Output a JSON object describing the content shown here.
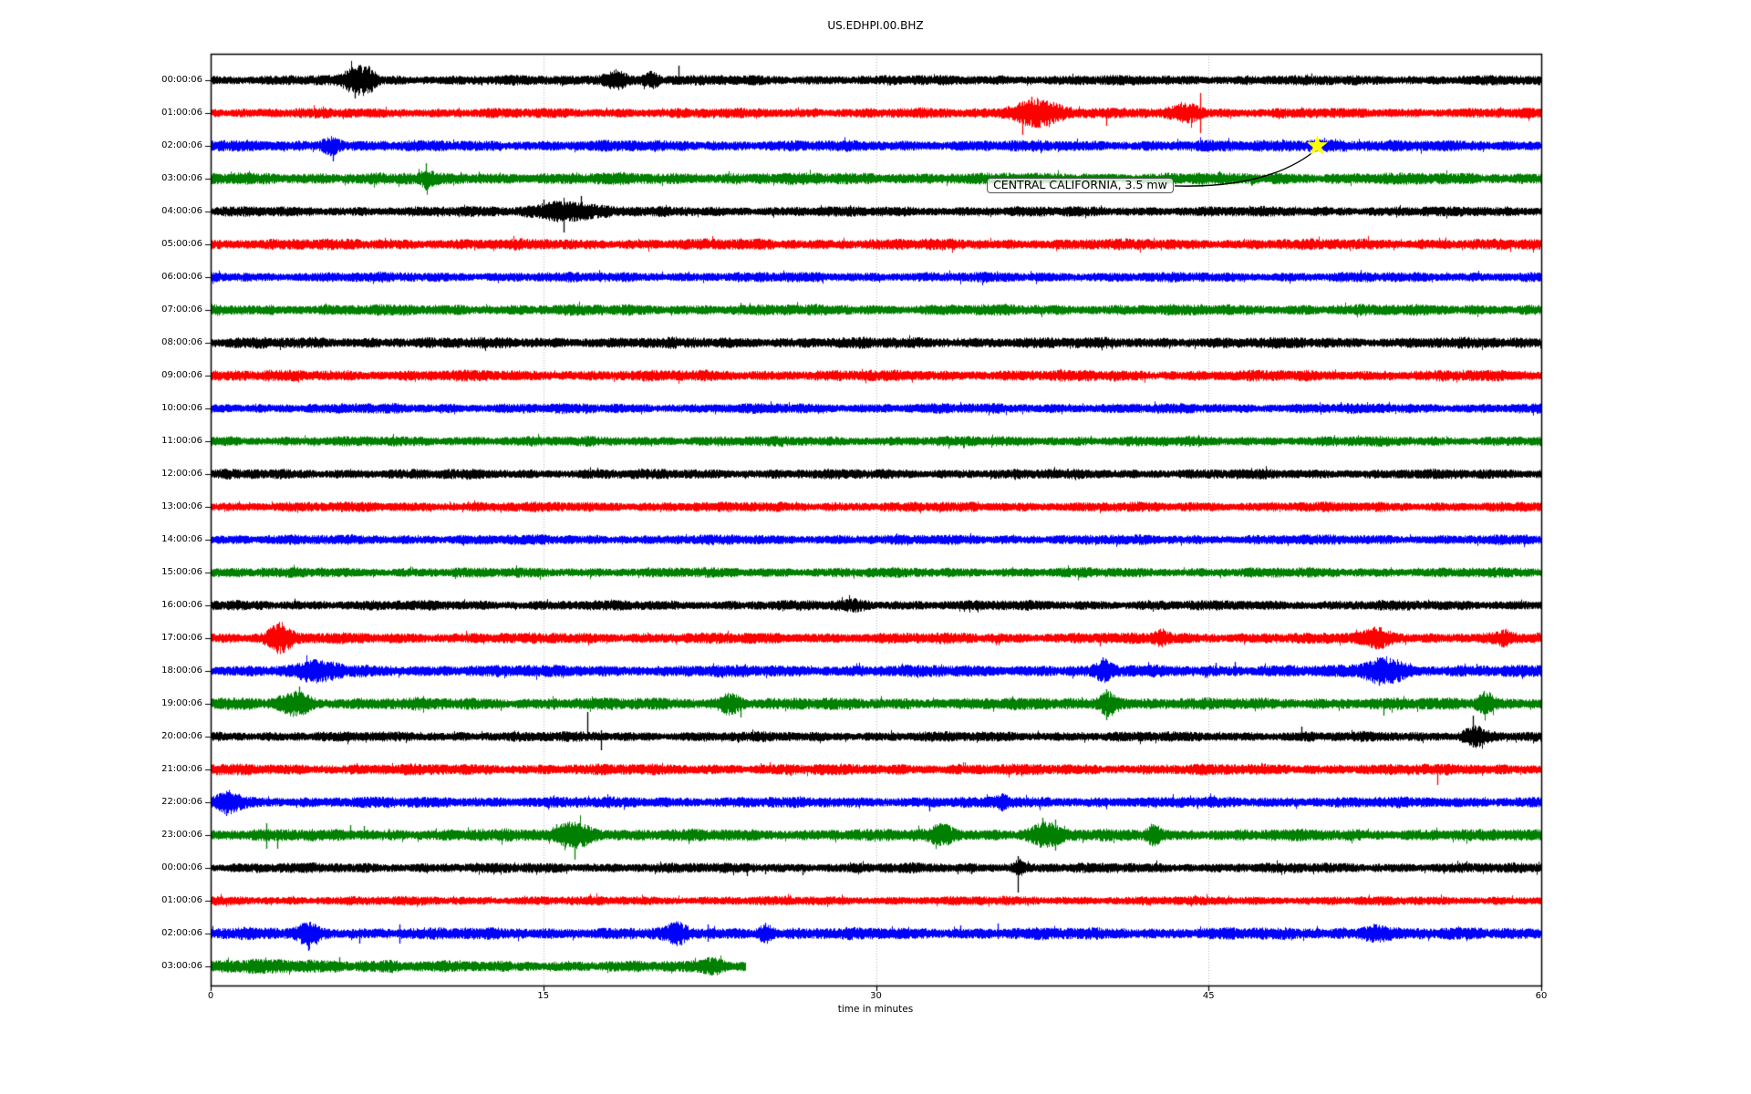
{
  "chart_data": {
    "type": "line",
    "title": "US.EDHPI.00.BHZ",
    "subtitle": "",
    "x_axis": {
      "label": "time in minutes",
      "ticks": [
        0,
        15,
        30,
        45,
        60
      ],
      "range": [
        0,
        60
      ]
    },
    "grid": {
      "vertical_minutes": [
        15,
        30,
        45
      ],
      "style": "dotted",
      "color": "#b0b0b0"
    },
    "color_cycle": [
      "#000000",
      "#ff0000",
      "#0000ff",
      "#008000"
    ],
    "annotation": {
      "text": "CENTRAL CALIFORNIA, 3.5 mw",
      "marker": "star-icon",
      "marker_color": "#ffff00",
      "arrow_color": "#000000",
      "target": {
        "row_index": 2,
        "minute": 49.9
      },
      "box": {
        "left_minute": 35.0,
        "row_position": 3.22
      }
    },
    "rows": [
      {
        "label": "00:00:06",
        "color": "#000000",
        "amp": 5,
        "events": [
          {
            "kind": "burst",
            "t": 6.4,
            "dur": 0.7,
            "amp": 9
          },
          {
            "kind": "burst",
            "t": 7.0,
            "dur": 0.7,
            "amp": 11
          },
          {
            "kind": "spike",
            "t": 6.5,
            "down": 20,
            "up": 10
          },
          {
            "kind": "burst",
            "t": 18.2,
            "dur": 0.9,
            "amp": 8
          },
          {
            "kind": "burst",
            "t": 19.9,
            "dur": 0.5,
            "amp": 6
          },
          {
            "kind": "spike",
            "t": 21.1,
            "up": 16,
            "down": 5
          }
        ]
      },
      {
        "label": "01:00:06",
        "color": "#ff0000",
        "amp": 5,
        "events": [
          {
            "kind": "burst",
            "t": 37.2,
            "dur": 1.8,
            "amp": 12
          },
          {
            "kind": "spike",
            "t": 36.6,
            "down": 24,
            "up": 8
          },
          {
            "kind": "spike",
            "t": 37.0,
            "up": 18,
            "down": 10
          },
          {
            "kind": "spike",
            "t": 38.0,
            "up": 12,
            "down": 12
          },
          {
            "kind": "spike",
            "t": 40.4,
            "down": 14,
            "up": 4
          },
          {
            "kind": "burst",
            "t": 44.0,
            "dur": 1.0,
            "amp": 8
          },
          {
            "kind": "spike",
            "t": 44.6,
            "up": 22,
            "down": 22
          }
        ]
      },
      {
        "label": "02:00:06",
        "color": "#0000ff",
        "amp": 5.5,
        "events": [
          {
            "kind": "burst",
            "t": 5.4,
            "dur": 0.7,
            "amp": 7
          },
          {
            "kind": "spike",
            "t": 5.5,
            "down": 17,
            "up": 6
          },
          {
            "kind": "burst",
            "t": 50.0,
            "dur": 3.0,
            "amp": 2
          }
        ]
      },
      {
        "label": "03:00:06",
        "color": "#008000",
        "amp": 6,
        "events": [
          {
            "kind": "burst",
            "t": 9.7,
            "dur": 0.4,
            "amp": 5
          },
          {
            "kind": "spike",
            "t": 9.7,
            "up": 17,
            "down": 13
          },
          {
            "kind": "spike",
            "t": 44.7,
            "down": 9,
            "up": 3
          }
        ]
      },
      {
        "label": "04:00:06",
        "color": "#000000",
        "amp": 5,
        "events": [
          {
            "kind": "burst",
            "t": 16.0,
            "dur": 2.2,
            "amp": 8
          },
          {
            "kind": "spike",
            "t": 15.0,
            "up": 13,
            "down": 4
          },
          {
            "kind": "spike",
            "t": 15.9,
            "down": 23,
            "up": 6
          },
          {
            "kind": "spike",
            "t": 16.7,
            "up": 17,
            "down": 8
          }
        ]
      },
      {
        "label": "05:00:06",
        "color": "#ff0000",
        "amp": 5.5,
        "events": []
      },
      {
        "label": "06:00:06",
        "color": "#0000ff",
        "amp": 5,
        "events": []
      },
      {
        "label": "07:00:06",
        "color": "#008000",
        "amp": 5.5,
        "events": []
      },
      {
        "label": "08:00:06",
        "color": "#000000",
        "amp": 5.5,
        "events": []
      },
      {
        "label": "09:00:06",
        "color": "#ff0000",
        "amp": 5.5,
        "events": []
      },
      {
        "label": "10:00:06",
        "color": "#0000ff",
        "amp": 5,
        "events": []
      },
      {
        "label": "11:00:06",
        "color": "#008000",
        "amp": 5,
        "events": []
      },
      {
        "label": "12:00:06",
        "color": "#000000",
        "amp": 5,
        "events": []
      },
      {
        "label": "13:00:06",
        "color": "#ff0000",
        "amp": 5,
        "events": []
      },
      {
        "label": "14:00:06",
        "color": "#0000ff",
        "amp": 5,
        "events": []
      },
      {
        "label": "15:00:06",
        "color": "#008000",
        "amp": 5,
        "events": []
      },
      {
        "label": "16:00:06",
        "color": "#000000",
        "amp": 5,
        "events": [
          {
            "kind": "burst",
            "t": 29.0,
            "dur": 0.8,
            "amp": 3
          }
        ]
      },
      {
        "label": "17:00:06",
        "color": "#ff0000",
        "amp": 5.5,
        "events": [
          {
            "kind": "burst",
            "t": 3.1,
            "dur": 0.9,
            "amp": 12
          },
          {
            "kind": "spike",
            "t": 3.3,
            "down": 16,
            "up": 10
          },
          {
            "kind": "spike",
            "t": 40.1,
            "down": 9,
            "up": 3
          },
          {
            "kind": "burst",
            "t": 42.9,
            "dur": 0.5,
            "amp": 6
          },
          {
            "kind": "burst",
            "t": 52.6,
            "dur": 1.1,
            "amp": 7
          },
          {
            "kind": "burst",
            "t": 58.3,
            "dur": 0.5,
            "amp": 5
          }
        ]
      },
      {
        "label": "18:00:06",
        "color": "#0000ff",
        "amp": 6,
        "events": [
          {
            "kind": "burst",
            "t": 4.8,
            "dur": 1.5,
            "amp": 7
          },
          {
            "kind": "spike",
            "t": 40.2,
            "up": 15,
            "down": 6
          },
          {
            "kind": "burst",
            "t": 40.3,
            "dur": 0.6,
            "amp": 7
          },
          {
            "kind": "spike",
            "t": 45.3,
            "up": 9,
            "down": 4
          },
          {
            "kind": "spike",
            "t": 46.2,
            "up": 10,
            "down": 6
          },
          {
            "kind": "burst",
            "t": 52.9,
            "dur": 1.4,
            "amp": 11
          },
          {
            "kind": "spike",
            "t": 52.7,
            "up": 14,
            "down": 16
          },
          {
            "kind": "spike",
            "t": 53.3,
            "down": 14,
            "up": 10
          },
          {
            "kind": "spike",
            "t": 57.1,
            "up": 8,
            "down": 4
          }
        ]
      },
      {
        "label": "19:00:06",
        "color": "#008000",
        "amp": 6,
        "events": [
          {
            "kind": "burst",
            "t": 3.8,
            "dur": 1.1,
            "amp": 9
          },
          {
            "kind": "spike",
            "t": 4.0,
            "up": 19,
            "down": 6
          },
          {
            "kind": "burst",
            "t": 23.4,
            "dur": 0.7,
            "amp": 8
          },
          {
            "kind": "spike",
            "t": 23.9,
            "down": 15,
            "up": 7
          },
          {
            "kind": "burst",
            "t": 40.5,
            "dur": 0.7,
            "amp": 10
          },
          {
            "kind": "spike",
            "t": 40.4,
            "up": 16,
            "down": 18
          },
          {
            "kind": "spike",
            "t": 52.9,
            "down": 13,
            "up": 5
          },
          {
            "kind": "burst",
            "t": 57.5,
            "dur": 0.6,
            "amp": 9
          },
          {
            "kind": "spike",
            "t": 57.4,
            "up": 14,
            "down": 6
          }
        ]
      },
      {
        "label": "20:00:06",
        "color": "#000000",
        "amp": 5,
        "events": [
          {
            "kind": "spike",
            "t": 17.0,
            "up": 27,
            "down": 5
          },
          {
            "kind": "spike",
            "t": 17.6,
            "down": 15,
            "up": 7
          },
          {
            "kind": "spike",
            "t": 49.2,
            "up": 11,
            "down": 4
          },
          {
            "kind": "burst",
            "t": 57.0,
            "dur": 0.9,
            "amp": 8
          },
          {
            "kind": "spike",
            "t": 56.9,
            "up": 23,
            "down": 12
          }
        ]
      },
      {
        "label": "21:00:06",
        "color": "#ff0000",
        "amp": 5.5,
        "events": [
          {
            "kind": "spike",
            "t": 55.3,
            "down": 17,
            "up": 6
          }
        ]
      },
      {
        "label": "22:00:06",
        "color": "#0000ff",
        "amp": 5.5,
        "events": [
          {
            "kind": "burst",
            "t": 0.8,
            "dur": 0.9,
            "amp": 8
          },
          {
            "kind": "spike",
            "t": 0.7,
            "down": 15,
            "up": 8
          },
          {
            "kind": "spike",
            "t": 32.4,
            "down": 10,
            "up": 5
          },
          {
            "kind": "burst",
            "t": 35.7,
            "dur": 0.4,
            "amp": 5
          },
          {
            "kind": "spike",
            "t": 35.7,
            "up": 10,
            "down": 10
          }
        ]
      },
      {
        "label": "23:00:06",
        "color": "#008000",
        "amp": 6,
        "events": [
          {
            "kind": "spike",
            "t": 2.5,
            "up": 13,
            "down": 15
          },
          {
            "kind": "spike",
            "t": 3.0,
            "down": 15,
            "up": 6
          },
          {
            "kind": "spike",
            "t": 6.3,
            "up": 11,
            "down": 5
          },
          {
            "kind": "spike",
            "t": 6.9,
            "up": 10,
            "down": 5
          },
          {
            "kind": "burst",
            "t": 16.4,
            "dur": 1.4,
            "amp": 10
          },
          {
            "kind": "spike",
            "t": 15.6,
            "up": 12,
            "down": 8
          },
          {
            "kind": "spike",
            "t": 16.4,
            "down": 27,
            "up": 10
          },
          {
            "kind": "burst",
            "t": 33.0,
            "dur": 0.9,
            "amp": 7
          },
          {
            "kind": "burst",
            "t": 37.6,
            "dur": 1.1,
            "amp": 9
          },
          {
            "kind": "spike",
            "t": 37.5,
            "up": 19,
            "down": 8
          },
          {
            "kind": "spike",
            "t": 38.1,
            "up": 17,
            "down": 17
          },
          {
            "kind": "burst",
            "t": 42.5,
            "dur": 0.5,
            "amp": 8
          },
          {
            "kind": "spike",
            "t": 42.5,
            "up": 12,
            "down": 8
          }
        ]
      },
      {
        "label": "00:00:06",
        "color": "#000000",
        "amp": 5,
        "events": [
          {
            "kind": "spike",
            "t": 24.2,
            "down": 9,
            "up": 4
          },
          {
            "kind": "spike",
            "t": 25.0,
            "down": 7,
            "up": 4
          },
          {
            "kind": "spike",
            "t": 26.7,
            "down": 8,
            "up": 4
          },
          {
            "kind": "spike",
            "t": 33.7,
            "down": 7,
            "up": 4
          },
          {
            "kind": "spike",
            "t": 34.3,
            "down": 7,
            "up": 4
          },
          {
            "kind": "burst",
            "t": 36.4,
            "dur": 0.4,
            "amp": 6
          },
          {
            "kind": "spike",
            "t": 36.4,
            "up": 13,
            "down": 27
          }
        ]
      },
      {
        "label": "01:00:06",
        "color": "#ff0000",
        "amp": 4.5,
        "events": []
      },
      {
        "label": "02:00:06",
        "color": "#0000ff",
        "amp": 6,
        "events": [
          {
            "kind": "burst",
            "t": 4.4,
            "dur": 0.8,
            "amp": 8
          },
          {
            "kind": "spike",
            "t": 4.4,
            "down": 19,
            "up": 8
          },
          {
            "kind": "spike",
            "t": 6.7,
            "down": 11,
            "up": 5
          },
          {
            "kind": "spike",
            "t": 8.5,
            "up": 10,
            "down": 11
          },
          {
            "kind": "burst",
            "t": 21.0,
            "dur": 0.7,
            "amp": 7
          },
          {
            "kind": "spike",
            "t": 21.2,
            "down": 13,
            "up": 7
          },
          {
            "kind": "spike",
            "t": 22.4,
            "up": 10,
            "down": 9
          },
          {
            "kind": "burst",
            "t": 25.0,
            "dur": 0.5,
            "amp": 7
          },
          {
            "kind": "spike",
            "t": 25.0,
            "up": 11,
            "down": 5
          },
          {
            "kind": "spike",
            "t": 33.8,
            "up": 9,
            "down": 5
          },
          {
            "kind": "spike",
            "t": 35.5,
            "up": 11,
            "down": 6
          },
          {
            "kind": "burst",
            "t": 52.5,
            "dur": 1.0,
            "amp": 6
          },
          {
            "kind": "spike",
            "t": 52.5,
            "up": 10,
            "down": 8
          }
        ]
      },
      {
        "label": "03:00:06",
        "color": "#008000",
        "amp": 7,
        "end_minute": 24.1,
        "amp_profile": [
          [
            0,
            7
          ],
          [
            8.5,
            5.5
          ]
        ],
        "events": [
          {
            "kind": "spike",
            "t": 5.8,
            "up": 10,
            "down": 6
          },
          {
            "kind": "burst",
            "t": 22.6,
            "dur": 0.8,
            "amp": 6
          }
        ]
      }
    ]
  }
}
